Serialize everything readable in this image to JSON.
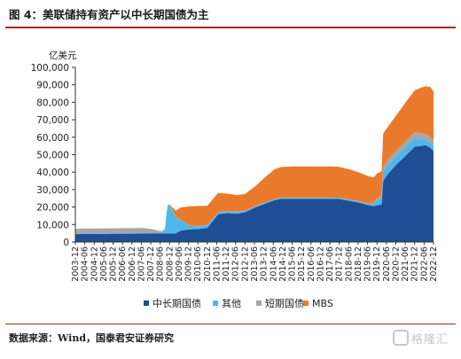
{
  "figure": {
    "title": "图 4：美联储持有资产以中长期国债为主",
    "source": "数据来源：Wind，国泰君安证券研究",
    "watermark": "格隆汇"
  },
  "chart_data": {
    "type": "area",
    "stacked": true,
    "unit_label": "亿美元",
    "ylim": [
      0,
      100000
    ],
    "yticks": [
      0,
      10000,
      20000,
      30000,
      40000,
      50000,
      60000,
      70000,
      80000,
      90000,
      100000
    ],
    "ytick_labels": [
      "0",
      "10,000",
      "20,000",
      "30,000",
      "40,000",
      "50,000",
      "60,000",
      "70,000",
      "80,000",
      "90,000",
      "100,000"
    ],
    "xtick_labels": [
      "2003-12",
      "2004-06",
      "2004-12",
      "2005-06",
      "2005-12",
      "2006-06",
      "2006-12",
      "2007-06",
      "2007-12",
      "2008-06",
      "2008-12",
      "2009-06",
      "2009-12",
      "2010-06",
      "2010-12",
      "2011-06",
      "2011-12",
      "2012-06",
      "2012-12",
      "2013-06",
      "2013-12",
      "2014-06",
      "2014-12",
      "2015-06",
      "2015-12",
      "2016-06",
      "2016-12",
      "2017-06",
      "2017-12",
      "2018-06",
      "2018-12",
      "2019-06",
      "2019-12",
      "2020-06",
      "2020-12",
      "2021-06",
      "2021-12",
      "2022-06",
      "2022-12"
    ],
    "x": [
      2003.92,
      2004.5,
      2005.5,
      2006.5,
      2007.5,
      2007.92,
      2008.5,
      2008.67,
      2008.75,
      2008.83,
      2008.92,
      2009.25,
      2009.5,
      2010.0,
      2010.5,
      2010.92,
      2011.5,
      2012.0,
      2012.5,
      2012.92,
      2013.5,
      2014.0,
      2014.5,
      2014.83,
      2015.5,
      2016.5,
      2017.5,
      2017.92,
      2018.5,
      2019.0,
      2019.5,
      2019.75,
      2019.92,
      2020.17,
      2020.25,
      2020.5,
      2020.92,
      2021.5,
      2021.92,
      2022.25,
      2022.5,
      2022.75,
      2022.92
    ],
    "series": [
      {
        "name": "中长期国债",
        "color": "#1f4e96",
        "values": [
          4500,
          4600,
          4700,
          4750,
          4800,
          4800,
          4800,
          4800,
          4800,
          4800,
          4800,
          4900,
          6500,
          7200,
          7500,
          8000,
          16000,
          16500,
          16200,
          17000,
          20000,
          22000,
          24000,
          24700,
          24700,
          24700,
          24700,
          24600,
          23500,
          22500,
          21000,
          20500,
          21000,
          21500,
          35000,
          39000,
          44000,
          50000,
          54500,
          55000,
          55500,
          54000,
          52000
        ]
      },
      {
        "name": "其他",
        "color": "#4db8e8",
        "values": [
          200,
          200,
          200,
          200,
          200,
          200,
          300,
          2000,
          11000,
          16000,
          16000,
          9000,
          6000,
          2000,
          1500,
          1500,
          1000,
          1000,
          1000,
          800,
          600,
          600,
          600,
          600,
          600,
          600,
          600,
          600,
          600,
          600,
          800,
          1500,
          3000,
          3500,
          6000,
          5000,
          5000,
          5000,
          5000,
          4000,
          3000,
          3000,
          3000
        ]
      },
      {
        "name": "短期国债",
        "color": "#a6a6a6",
        "values": [
          2800,
          2900,
          2900,
          2950,
          3000,
          2500,
          1000,
          800,
          700,
          700,
          700,
          500,
          300,
          200,
          200,
          200,
          150,
          150,
          150,
          150,
          150,
          150,
          150,
          150,
          150,
          150,
          150,
          150,
          150,
          150,
          200,
          500,
          1200,
          1500,
          2000,
          3000,
          3200,
          3300,
          3300,
          3300,
          3200,
          3200,
          3200
        ]
      },
      {
        "name": "MBS",
        "color": "#e97a2c",
        "values": [
          0,
          0,
          0,
          0,
          0,
          0,
          0,
          0,
          0,
          0,
          0,
          3500,
          7000,
          11000,
          11500,
          11000,
          11000,
          10000,
          9500,
          9500,
          11500,
          14500,
          17000,
          17500,
          17800,
          17800,
          17800,
          17700,
          17200,
          16500,
          15500,
          14500,
          14000,
          14000,
          19000,
          19000,
          20000,
          22500,
          24000,
          26000,
          27500,
          28500,
          28000
        ]
      }
    ],
    "legend_position": "bottom",
    "grid": false
  }
}
